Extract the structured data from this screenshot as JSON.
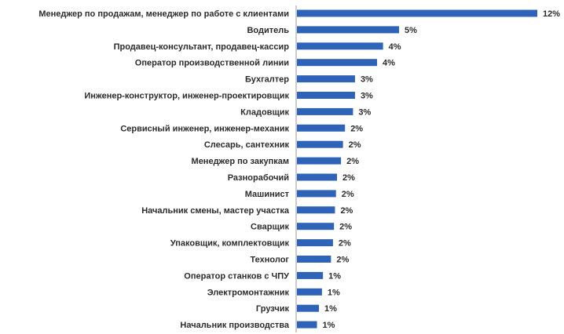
{
  "chart_data": {
    "type": "bar",
    "orientation": "horizontal",
    "categories": [
      "Менеджер по продажам, менеджер по работе с клиентами",
      "Водитель",
      "Продавец-консультант, продавец-кассир",
      "Оператор производственной линии",
      "Бухгалтер",
      "Инженер-конструктор, инженер-проектировщик",
      "Кладовщик",
      "Сервисный инженер, инженер-механик",
      "Слесарь, сантехник",
      "Менеджер по закупкам",
      "Разнорабочий",
      "Машинист",
      "Начальник смены, мастер участка",
      "Сварщик",
      "Упаковщик, комплектовщик",
      "Технолог",
      "Оператор станков с ЧПУ",
      "Электромонтажник",
      "Грузчик",
      "Начальник производства"
    ],
    "values": [
      12,
      5,
      4,
      4,
      3,
      3,
      3,
      2,
      2,
      2,
      2,
      2,
      2,
      2,
      2,
      2,
      1,
      1,
      1,
      1
    ],
    "bar_lengths_pct": [
      12,
      5.1,
      4.3,
      4.0,
      2.9,
      2.9,
      2.8,
      2.4,
      2.3,
      2.2,
      2.0,
      1.95,
      1.9,
      1.85,
      1.8,
      1.7,
      1.3,
      1.25,
      1.1,
      1.0
    ],
    "value_labels": [
      "12%",
      "5%",
      "4%",
      "4%",
      "3%",
      "3%",
      "3%",
      "2%",
      "2%",
      "2%",
      "2%",
      "2%",
      "2%",
      "2%",
      "2%",
      "2%",
      "1%",
      "1%",
      "1%",
      "1%"
    ],
    "bar_color": "#2e63b8",
    "axis_color": "#9a9a9a",
    "grid": false,
    "legend": "none"
  }
}
